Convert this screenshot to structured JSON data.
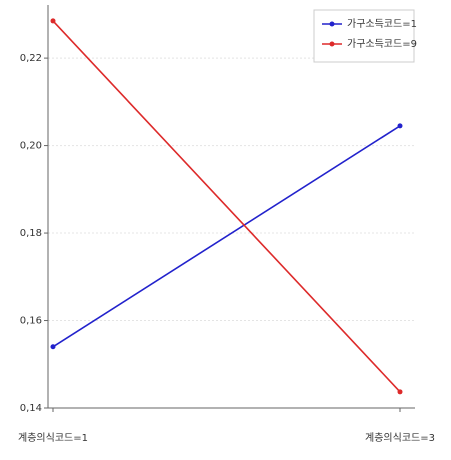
{
  "chart_data": {
    "type": "line",
    "categories": [
      "계층의식코드=1",
      "계층의식코드=3"
    ],
    "series": [
      {
        "name": "가구소득코드=1",
        "color": "#2222cc",
        "values": [
          0.154,
          0.2045
        ]
      },
      {
        "name": "가구소득코드=9",
        "color": "#dd2a2a",
        "values": [
          0.2285,
          0.1437
        ]
      }
    ],
    "ylim": [
      0.14,
      0.231
    ],
    "yticks": [
      {
        "value": 0.14,
        "label": "0,14"
      },
      {
        "value": 0.16,
        "label": "0,16"
      },
      {
        "value": 0.18,
        "label": "0,18"
      },
      {
        "value": 0.2,
        "label": "0,20"
      },
      {
        "value": 0.22,
        "label": "0,22"
      }
    ],
    "grid": true,
    "legend": "top-right"
  }
}
